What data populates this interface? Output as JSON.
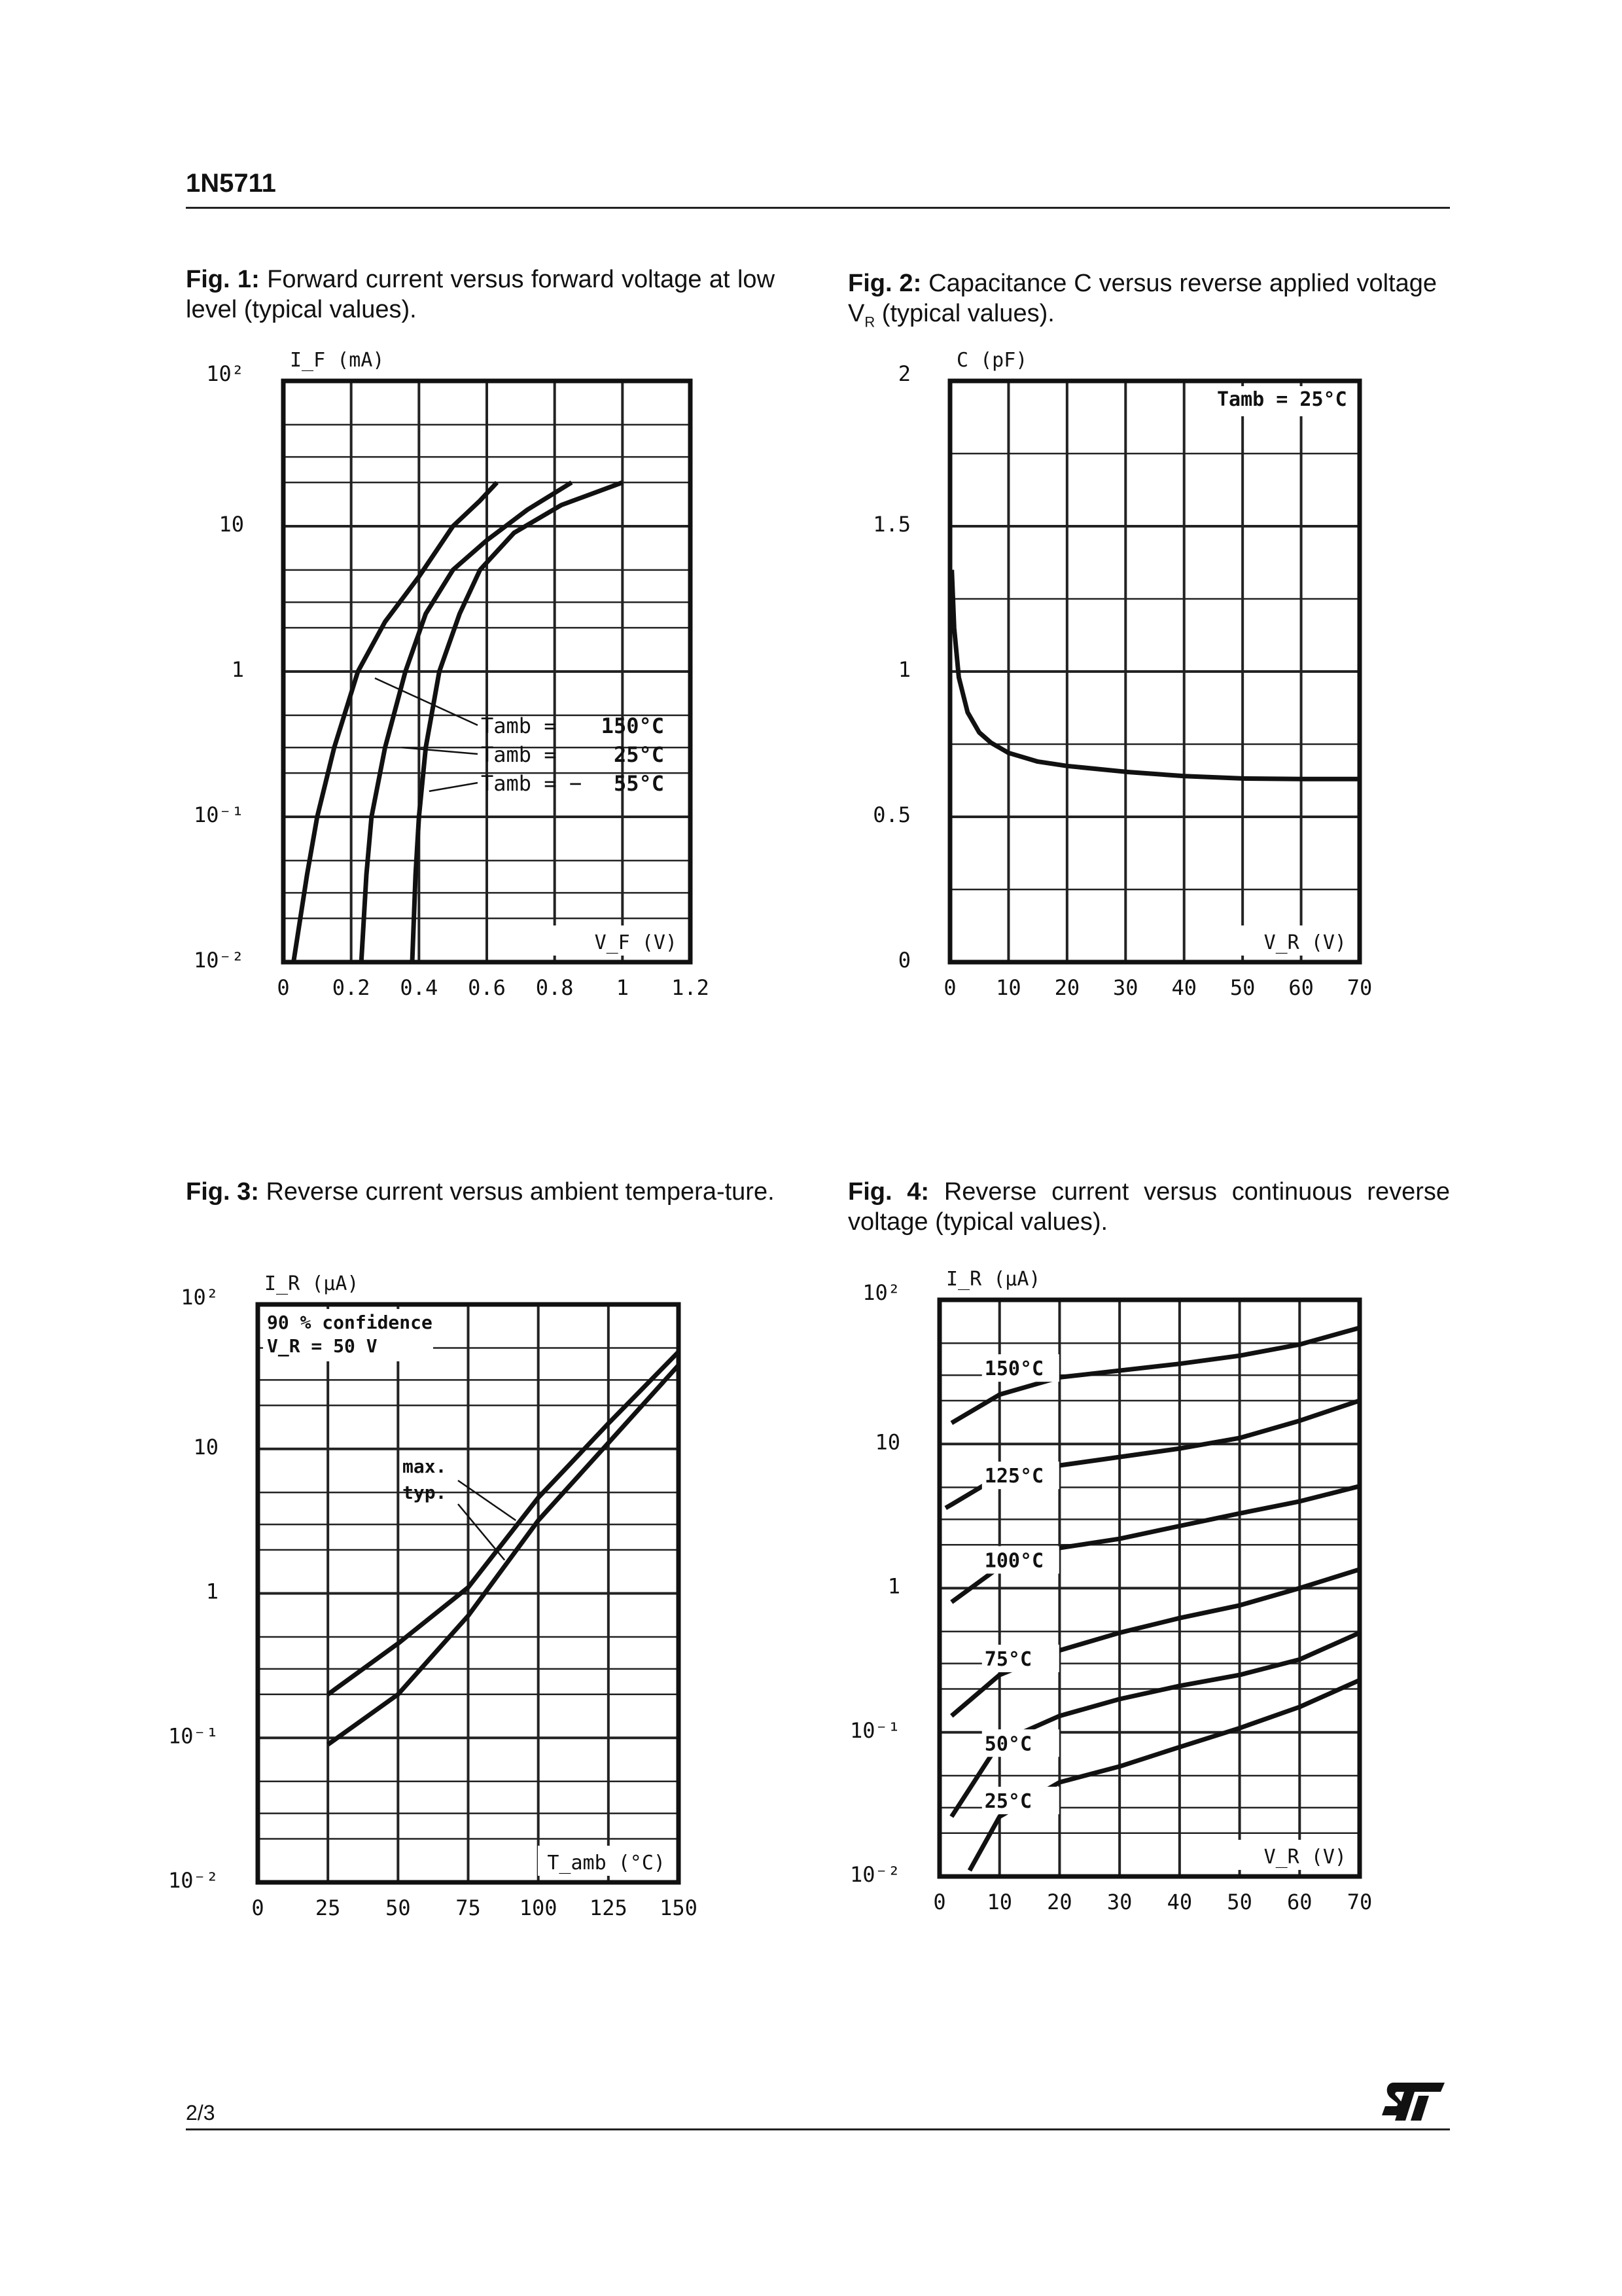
{
  "header": {
    "title": "1N5711"
  },
  "footer": {
    "page": "2/3",
    "logo": "ST"
  },
  "captions": [
    {
      "label": "Fig. 1:",
      "text": "Forward current versus forward voltage at low level (typical values)."
    },
    {
      "label": "Fig. 2:",
      "text": "Capacitance C versus reverse applied voltage V",
      "sub": "R",
      "tail": " (typical values)."
    },
    {
      "label": "Fig. 3:",
      "text": "Reverse current versus ambient tempera-ture."
    },
    {
      "label": "Fig. 4:",
      "text": "Reverse current versus continuous reverse voltage (typical values)."
    }
  ],
  "chart_data": [
    {
      "type": "line",
      "title": "Forward current versus forward voltage at low level",
      "xlabel": "V_F (V)",
      "ylabel": "I_F (mA)",
      "yscale": "log",
      "xlim": [
        0,
        1.2
      ],
      "ylim": [
        0.01,
        100
      ],
      "xticks": [
        "0",
        "0.2",
        "0.4",
        "0.6",
        "0.8",
        "1",
        "1.2"
      ],
      "yticks": [
        "10⁻²",
        "10⁻¹",
        "1",
        "10",
        "10²"
      ],
      "series": [
        {
          "name": "Tamb = 150°C",
          "x": [
            0.03,
            0.07,
            0.1,
            0.15,
            0.22,
            0.3,
            0.4,
            0.5,
            0.58,
            0.63
          ],
          "y": [
            0.01,
            0.04,
            0.1,
            0.3,
            1,
            2.2,
            4.5,
            10,
            15,
            20
          ]
        },
        {
          "name": "Tamb = 25°C",
          "x": [
            0.23,
            0.245,
            0.26,
            0.3,
            0.36,
            0.42,
            0.5,
            0.6,
            0.72,
            0.85
          ],
          "y": [
            0.01,
            0.04,
            0.1,
            0.3,
            1,
            2.5,
            5,
            8,
            13,
            20
          ]
        },
        {
          "name": "Tamb = -55°C",
          "x": [
            0.38,
            0.39,
            0.4,
            0.42,
            0.46,
            0.52,
            0.58,
            0.68,
            0.82,
            1.0
          ],
          "y": [
            0.01,
            0.04,
            0.1,
            0.3,
            1,
            2.5,
            5,
            9,
            14,
            20
          ]
        }
      ],
      "legend": [
        "Tamb =",
        "150°C",
        "Tamb =",
        "25°C",
        "Tamb =  −",
        "55°C"
      ]
    },
    {
      "type": "line",
      "title": "Capacitance C versus reverse applied voltage",
      "xlabel": "V_R (V)",
      "ylabel": "C (pF)",
      "yscale": "linear",
      "xlim": [
        0,
        70
      ],
      "ylim": [
        0,
        2
      ],
      "xticks": [
        "0",
        "10",
        "20",
        "30",
        "40",
        "50",
        "60",
        "70"
      ],
      "yticks": [
        "0",
        "0.5",
        "1",
        "1.5",
        "2"
      ],
      "series": [
        {
          "name": "Tamb = 25°C",
          "x": [
            0.3,
            0.7,
            1.5,
            3,
            5,
            7,
            10,
            15,
            20,
            30,
            40,
            50,
            60,
            70
          ],
          "y": [
            1.35,
            1.15,
            0.98,
            0.86,
            0.79,
            0.755,
            0.72,
            0.69,
            0.675,
            0.655,
            0.64,
            0.632,
            0.63,
            0.63
          ]
        }
      ],
      "annotation": "Tamb = 25°C"
    },
    {
      "type": "line",
      "title": "Reverse current versus ambient temperature",
      "xlabel": "T_amb (°C)",
      "ylabel": "I_R (µA)",
      "yscale": "log",
      "xlim": [
        0,
        150
      ],
      "ylim": [
        0.01,
        100
      ],
      "xticks": [
        "0",
        "25",
        "50",
        "75",
        "100",
        "125",
        "150"
      ],
      "yticks": [
        "10⁻²",
        "10⁻¹",
        "1",
        "10",
        "10²"
      ],
      "series": [
        {
          "name": "max.",
          "x": [
            25,
            50,
            75,
            100,
            125,
            150
          ],
          "y": [
            0.2,
            0.45,
            1.1,
            4.6,
            15,
            47
          ]
        },
        {
          "name": "typ.",
          "x": [
            25,
            50,
            75,
            100,
            125,
            150
          ],
          "y": [
            0.09,
            0.2,
            0.7,
            3.2,
            11,
            38
          ]
        }
      ],
      "annotations": [
        "90 % confidence",
        "V_R = 50 V"
      ]
    },
    {
      "type": "line",
      "title": "Reverse current versus continuous reverse voltage",
      "xlabel": "V_R (V)",
      "ylabel": "I_R (µA)",
      "yscale": "log",
      "xlim": [
        0,
        70
      ],
      "ylim": [
        0.01,
        100
      ],
      "xticks": [
        "0",
        "10",
        "20",
        "30",
        "40",
        "50",
        "60",
        "70"
      ],
      "yticks": [
        "10⁻²",
        "10⁻¹",
        "1",
        "10",
        "10²"
      ],
      "series": [
        {
          "name": "150°C",
          "x": [
            2,
            10,
            20,
            40,
            50,
            60,
            70
          ],
          "y": [
            14,
            22,
            29,
            36,
            41,
            49,
            64
          ]
        },
        {
          "name": "125°C",
          "x": [
            1,
            2,
            10,
            20,
            40,
            50,
            60,
            70
          ],
          "y": [
            3.6,
            3.8,
            6,
            7.1,
            9.3,
            11,
            14.5,
            20
          ]
        },
        {
          "name": "100°C",
          "x": [
            2,
            10,
            20,
            30,
            40,
            50,
            60,
            70
          ],
          "y": [
            0.8,
            1.4,
            1.9,
            2.2,
            2.7,
            3.3,
            4,
            5.1
          ]
        },
        {
          "name": "75°C",
          "x": [
            2,
            10,
            20,
            30,
            40,
            50,
            60,
            70
          ],
          "y": [
            0.13,
            0.25,
            0.37,
            0.49,
            0.62,
            0.76,
            1.0,
            1.35
          ]
        },
        {
          "name": "50°C",
          "x": [
            2,
            10,
            20,
            30,
            40,
            50,
            60,
            70
          ],
          "y": [
            0.026,
            0.085,
            0.13,
            0.17,
            0.21,
            0.25,
            0.32,
            0.49
          ]
        },
        {
          "name": "25°C",
          "x": [
            5,
            10,
            20,
            30,
            40,
            50,
            60,
            70
          ],
          "y": [
            0.011,
            0.026,
            0.045,
            0.058,
            0.079,
            0.107,
            0.15,
            0.23
          ]
        }
      ]
    }
  ]
}
